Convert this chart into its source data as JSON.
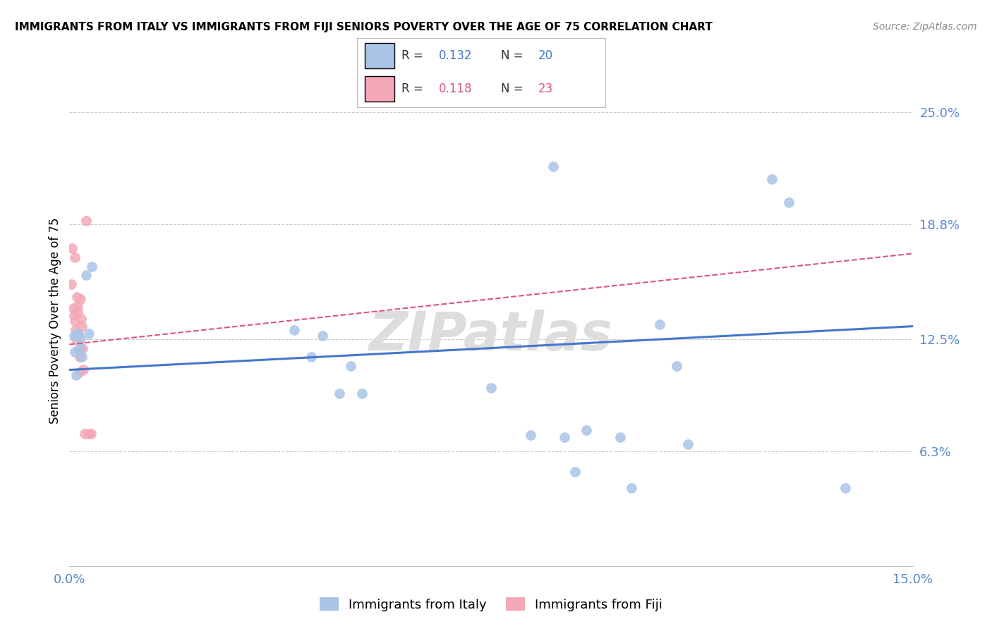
{
  "title": "IMMIGRANTS FROM ITALY VS IMMIGRANTS FROM FIJI SENIORS POVERTY OVER THE AGE OF 75 CORRELATION CHART",
  "source": "Source: ZipAtlas.com",
  "ylabel": "Seniors Poverty Over the Age of 75",
  "xlim": [
    0.0,
    0.15
  ],
  "ylim": [
    0.0,
    0.27
  ],
  "yticks": [
    0.063,
    0.125,
    0.188,
    0.25
  ],
  "ytick_labels": [
    "6.3%",
    "12.5%",
    "18.8%",
    "25.0%"
  ],
  "italy_color": "#aac4e8",
  "fiji_color": "#f4a8b8",
  "italy_line_color": "#4477cc",
  "fiji_line_color": "#dd5577",
  "background_color": "#ffffff",
  "grid_color": "#cccccc",
  "watermark": "ZIPatlas",
  "italy_scatter": [
    [
      0.0008,
      0.127
    ],
    [
      0.001,
      0.118
    ],
    [
      0.0012,
      0.105
    ],
    [
      0.0015,
      0.128
    ],
    [
      0.0018,
      0.12
    ],
    [
      0.002,
      0.125
    ],
    [
      0.0022,
      0.115
    ],
    [
      0.003,
      0.16
    ],
    [
      0.0035,
      0.128
    ],
    [
      0.004,
      0.165
    ],
    [
      0.04,
      0.13
    ],
    [
      0.043,
      0.115
    ],
    [
      0.045,
      0.127
    ],
    [
      0.048,
      0.095
    ],
    [
      0.05,
      0.11
    ],
    [
      0.052,
      0.095
    ],
    [
      0.075,
      0.098
    ],
    [
      0.082,
      0.072
    ],
    [
      0.086,
      0.22
    ],
    [
      0.088,
      0.071
    ],
    [
      0.09,
      0.052
    ],
    [
      0.092,
      0.075
    ],
    [
      0.098,
      0.071
    ],
    [
      0.1,
      0.043
    ],
    [
      0.105,
      0.133
    ],
    [
      0.108,
      0.11
    ],
    [
      0.11,
      0.067
    ],
    [
      0.125,
      0.213
    ],
    [
      0.128,
      0.2
    ],
    [
      0.138,
      0.043
    ]
  ],
  "fiji_scatter": [
    [
      0.0003,
      0.155
    ],
    [
      0.0005,
      0.175
    ],
    [
      0.0007,
      0.142
    ],
    [
      0.0008,
      0.138
    ],
    [
      0.0009,
      0.135
    ],
    [
      0.001,
      0.17
    ],
    [
      0.0011,
      0.13
    ],
    [
      0.0012,
      0.125
    ],
    [
      0.0013,
      0.148
    ],
    [
      0.0014,
      0.143
    ],
    [
      0.0015,
      0.14
    ],
    [
      0.0016,
      0.128
    ],
    [
      0.0017,
      0.12
    ],
    [
      0.0018,
      0.115
    ],
    [
      0.0019,
      0.107
    ],
    [
      0.002,
      0.147
    ],
    [
      0.0021,
      0.136
    ],
    [
      0.0022,
      0.132
    ],
    [
      0.0023,
      0.12
    ],
    [
      0.0025,
      0.108
    ],
    [
      0.0027,
      0.073
    ],
    [
      0.003,
      0.19
    ],
    [
      0.0035,
      0.073
    ],
    [
      0.0038,
      0.073
    ]
  ],
  "italy_trend_x": [
    0.0,
    0.15
  ],
  "italy_trend_y": [
    0.108,
    0.132
  ],
  "fiji_trend_x": [
    0.0,
    0.15
  ],
  "fiji_trend_y": [
    0.122,
    0.172
  ]
}
